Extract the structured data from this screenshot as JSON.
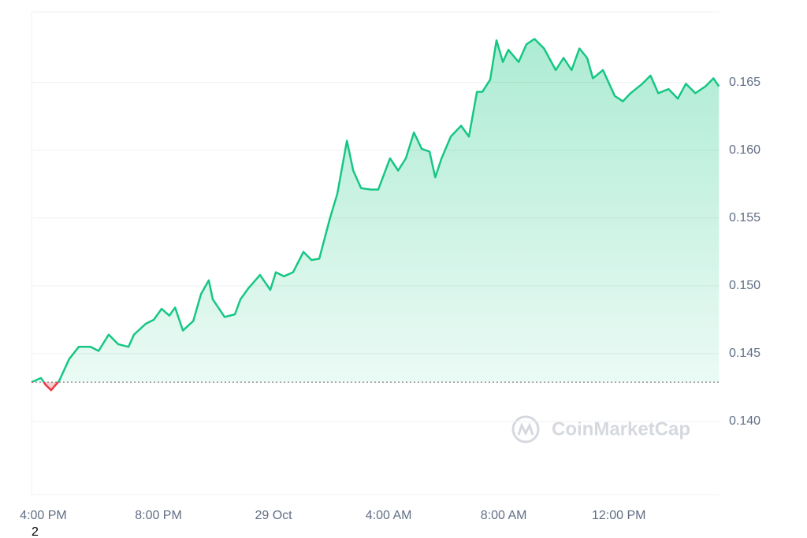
{
  "chart_data": {
    "type": "line",
    "x": [
      -0.41,
      -0.08,
      0.08,
      0.27,
      0.55,
      0.9,
      1.23,
      1.64,
      1.92,
      2.27,
      2.6,
      2.96,
      3.15,
      3.56,
      3.84,
      4.11,
      4.38,
      4.58,
      4.85,
      5.21,
      5.48,
      5.75,
      5.89,
      6.3,
      6.66,
      6.85,
      7.12,
      7.53,
      7.89,
      8.08,
      8.36,
      8.68,
      9.04,
      9.32,
      9.59,
      9.95,
      10.22,
      10.55,
      10.77,
      11.04,
      11.37,
      11.64,
      12.05,
      12.33,
      12.6,
      12.88,
      13.15,
      13.42,
      13.62,
      13.84,
      14.16,
      14.52,
      14.79,
      15.07,
      15.26,
      15.53,
      15.75,
      15.97,
      16.16,
      16.52,
      16.79,
      17.07,
      17.4,
      17.81,
      18.08,
      18.36,
      18.63,
      18.9,
      19.1,
      19.45,
      19.86,
      20.14,
      20.41,
      20.82,
      21.1,
      21.37,
      21.73,
      22.05,
      22.33,
      22.66,
      23.01,
      23.29,
      23.48
    ],
    "series": [
      {
        "color": "#16c784",
        "down_color": "#ea3943",
        "values": [
          0.1429,
          0.1432,
          0.1427,
          0.1423,
          0.143,
          0.1446,
          0.1455,
          0.1455,
          0.1452,
          0.1464,
          0.1457,
          0.1455,
          0.1464,
          0.1472,
          0.1475,
          0.1483,
          0.1478,
          0.1484,
          0.1467,
          0.1474,
          0.1494,
          0.1504,
          0.149,
          0.1477,
          0.1479,
          0.149,
          0.1498,
          0.1508,
          0.1497,
          0.151,
          0.1507,
          0.151,
          0.1525,
          0.1519,
          0.152,
          0.1549,
          0.1568,
          0.1607,
          0.1585,
          0.1572,
          0.1571,
          0.1571,
          0.1594,
          0.1585,
          0.1594,
          0.1613,
          0.1601,
          0.1599,
          0.158,
          0.1594,
          0.161,
          0.1618,
          0.161,
          0.1643,
          0.1643,
          0.1652,
          0.1681,
          0.1665,
          0.1674,
          0.1665,
          0.1678,
          0.1682,
          0.1675,
          0.1659,
          0.1668,
          0.1659,
          0.1675,
          0.1668,
          0.1653,
          0.1659,
          0.164,
          0.1636,
          0.1642,
          0.1649,
          0.1655,
          0.1642,
          0.1645,
          0.1638,
          0.1649,
          0.1642,
          0.1647,
          0.1653,
          0.1647
        ]
      }
    ],
    "baseline": 0.1429,
    "xlim": [
      -0.41,
      23.5
    ],
    "xticks": [
      {
        "value": 0,
        "label": "4:00 PM"
      },
      {
        "value": 4,
        "label": "8:00 PM"
      },
      {
        "value": 8,
        "label": "29 Oct"
      },
      {
        "value": 12,
        "label": "4:00 AM"
      },
      {
        "value": 16,
        "label": "8:00 AM"
      },
      {
        "value": 20,
        "label": "12:00 PM"
      }
    ],
    "ylim": [
      0.1346,
      0.1702
    ],
    "yticks": [
      {
        "value": 0.14,
        "label": "0.140"
      },
      0.145,
      {
        "value": 0.15,
        "label": "0.150"
      },
      0.155,
      {
        "value": 0.16,
        "label": "0.160"
      },
      0.165
    ],
    "grid": true,
    "watermark": "CoinMarketCap",
    "footnote": "2"
  }
}
